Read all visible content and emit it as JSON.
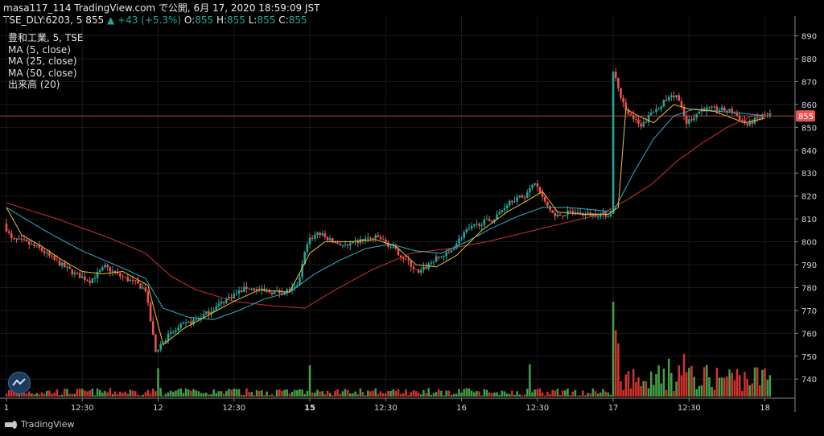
{
  "header": {
    "line1": "masa117_114 TradingView.com で公開, 6月 17, 2020 18:59:09 JST",
    "symbol": "TSE_DLY:6203, 5 855",
    "change": "▲ +43 (+5.3%)",
    "ohlc_o_label": "O:",
    "ohlc_o": "855",
    "ohlc_h_label": "H:",
    "ohlc_h": "855",
    "ohlc_l_label": "L:",
    "ohlc_l": "855",
    "ohlc_c_label": "C:",
    "ohlc_c": "855"
  },
  "legend": {
    "title": "豊和工業, 5, TSE",
    "ma5": "MA (5, close)",
    "ma25": "MA (25, close)",
    "ma50": "MA (50, close)",
    "volume": "出来高 (20)"
  },
  "footer": {
    "brand": "TradingView"
  },
  "colors": {
    "up": "#26a69a",
    "down": "#ef5350",
    "ma5": "#e8c23a",
    "ma25": "#2bb3c9",
    "ma50": "#d32f2f",
    "vol_up": "#4caf50",
    "vol_down": "#e53935",
    "price_line": "#ef5350",
    "background": "#000000"
  },
  "chart_data": {
    "type": "candlestick",
    "last_price": 855,
    "ylim": [
      732,
      893
    ],
    "y_ticks": [
      890,
      880,
      870,
      860,
      850,
      840,
      830,
      820,
      810,
      800,
      790,
      780,
      770,
      760,
      750,
      740
    ],
    "x_ticks": [
      "1",
      "12:30",
      "12",
      "12:30",
      "15",
      "12:30",
      "16",
      "12:30",
      "17",
      "12:30",
      "18"
    ],
    "x_ticks_bold": [
      false,
      false,
      false,
      false,
      true,
      false,
      false,
      false,
      false,
      false,
      false
    ],
    "x_tick_bar_index": [
      0,
      30,
      60,
      90,
      120,
      150,
      180,
      210,
      240,
      270,
      300
    ],
    "bar_count": 303,
    "ohlc_keyframes": [
      [
        0,
        808
      ],
      [
        3,
        801
      ],
      [
        8,
        800
      ],
      [
        14,
        797
      ],
      [
        20,
        792
      ],
      [
        28,
        786
      ],
      [
        34,
        783
      ],
      [
        40,
        789
      ],
      [
        46,
        785
      ],
      [
        52,
        782
      ],
      [
        56,
        779
      ],
      [
        60,
        752
      ],
      [
        64,
        758
      ],
      [
        70,
        763
      ],
      [
        76,
        766
      ],
      [
        82,
        770
      ],
      [
        88,
        775
      ],
      [
        96,
        780
      ],
      [
        104,
        778
      ],
      [
        110,
        778
      ],
      [
        116,
        780
      ],
      [
        120,
        800
      ],
      [
        124,
        804
      ],
      [
        130,
        800
      ],
      [
        136,
        798
      ],
      [
        142,
        801
      ],
      [
        148,
        802
      ],
      [
        154,
        797
      ],
      [
        160,
        791
      ],
      [
        164,
        786
      ],
      [
        170,
        792
      ],
      [
        176,
        795
      ],
      [
        182,
        804
      ],
      [
        188,
        808
      ],
      [
        194,
        810
      ],
      [
        200,
        818
      ],
      [
        206,
        820
      ],
      [
        210,
        826
      ],
      [
        214,
        817
      ],
      [
        218,
        811
      ],
      [
        224,
        813
      ],
      [
        230,
        812
      ],
      [
        236,
        812
      ],
      [
        240,
        812
      ],
      [
        241,
        875
      ],
      [
        244,
        862
      ],
      [
        248,
        855
      ],
      [
        252,
        850
      ],
      [
        256,
        856
      ],
      [
        262,
        862
      ],
      [
        266,
        864
      ],
      [
        270,
        852
      ],
      [
        276,
        858
      ],
      [
        282,
        858
      ],
      [
        288,
        857
      ],
      [
        294,
        851
      ],
      [
        298,
        854
      ],
      [
        303,
        855
      ]
    ],
    "ma5_keyframes": [
      [
        0,
        815
      ],
      [
        6,
        803
      ],
      [
        14,
        798
      ],
      [
        22,
        792
      ],
      [
        30,
        787
      ],
      [
        38,
        786
      ],
      [
        46,
        787
      ],
      [
        56,
        781
      ],
      [
        62,
        755
      ],
      [
        70,
        762
      ],
      [
        80,
        768
      ],
      [
        90,
        774
      ],
      [
        100,
        779
      ],
      [
        112,
        778
      ],
      [
        120,
        795
      ],
      [
        126,
        800
      ],
      [
        136,
        800
      ],
      [
        146,
        801
      ],
      [
        154,
        798
      ],
      [
        162,
        790
      ],
      [
        170,
        789
      ],
      [
        178,
        794
      ],
      [
        188,
        805
      ],
      [
        198,
        813
      ],
      [
        206,
        818
      ],
      [
        212,
        822
      ],
      [
        218,
        813
      ],
      [
        228,
        812
      ],
      [
        238,
        812
      ],
      [
        242,
        815
      ],
      [
        245,
        858
      ],
      [
        250,
        855
      ],
      [
        256,
        852
      ],
      [
        264,
        860
      ],
      [
        270,
        858
      ],
      [
        280,
        857
      ],
      [
        292,
        852
      ],
      [
        300,
        854
      ]
    ],
    "ma25_keyframes": [
      [
        0,
        815
      ],
      [
        15,
        805
      ],
      [
        30,
        796
      ],
      [
        45,
        789
      ],
      [
        55,
        784
      ],
      [
        62,
        771
      ],
      [
        72,
        767
      ],
      [
        82,
        766
      ],
      [
        92,
        770
      ],
      [
        102,
        775
      ],
      [
        112,
        778
      ],
      [
        122,
        786
      ],
      [
        132,
        792
      ],
      [
        142,
        797
      ],
      [
        152,
        799
      ],
      [
        162,
        796
      ],
      [
        172,
        795
      ],
      [
        182,
        800
      ],
      [
        192,
        806
      ],
      [
        202,
        811
      ],
      [
        212,
        815
      ],
      [
        222,
        815
      ],
      [
        232,
        814
      ],
      [
        240,
        813
      ],
      [
        248,
        830
      ],
      [
        256,
        845
      ],
      [
        264,
        855
      ],
      [
        272,
        858
      ],
      [
        282,
        857
      ],
      [
        292,
        856
      ],
      [
        300,
        855
      ]
    ],
    "ma50_keyframes": [
      [
        0,
        817
      ],
      [
        20,
        810
      ],
      [
        40,
        802
      ],
      [
        55,
        795
      ],
      [
        65,
        785
      ],
      [
        75,
        779
      ],
      [
        90,
        774
      ],
      [
        105,
        772
      ],
      [
        118,
        771
      ],
      [
        130,
        779
      ],
      [
        145,
        788
      ],
      [
        160,
        795
      ],
      [
        175,
        797
      ],
      [
        190,
        800
      ],
      [
        205,
        804
      ],
      [
        220,
        808
      ],
      [
        235,
        812
      ],
      [
        245,
        818
      ],
      [
        255,
        825
      ],
      [
        265,
        835
      ],
      [
        275,
        843
      ],
      [
        285,
        850
      ],
      [
        295,
        855
      ],
      [
        303,
        856
      ]
    ],
    "volume_spikes": [
      [
        60,
        0.3
      ],
      [
        120,
        0.33
      ],
      [
        207,
        0.34
      ],
      [
        240,
        1.0
      ],
      [
        241,
        0.7
      ],
      [
        242,
        0.56
      ],
      [
        268,
        0.45
      ],
      [
        262,
        0.4
      ]
    ]
  }
}
